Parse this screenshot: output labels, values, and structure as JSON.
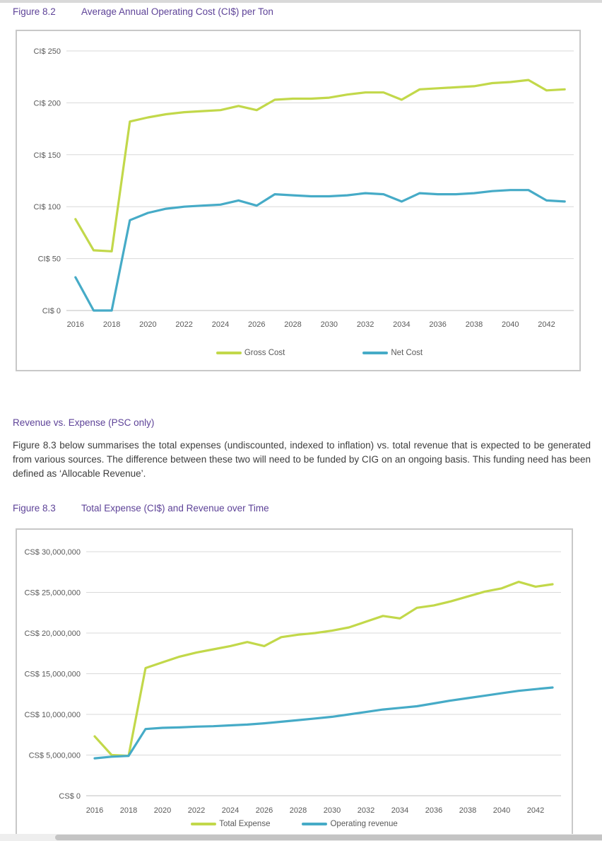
{
  "page": {
    "figure1": {
      "label": "Figure 8.2",
      "title": "Average Annual Operating Cost (CI$) per Ton"
    },
    "section": {
      "heading": "Revenue vs. Expense (PSC only)",
      "paragraph": "Figure 8.3 below summarises the total expenses (undiscounted, indexed to inflation) vs. total revenue that is expected to be generated from various sources. The difference between these two will need to be funded by CIG on an ongoing basis. This funding need has been defined as ‘Allocable Revenue’."
    },
    "figure2": {
      "label": "Figure 8.3",
      "title": "Total Expense (CI$) and Revenue over Time"
    }
  },
  "colors": {
    "heading_purple": "#5e4398",
    "body_text": "#3d3d3d",
    "axis_text": "#595959",
    "gridline": "#d9d9d9",
    "axis_line": "#bfbfbf",
    "chart_border": "#c8c8c8",
    "gross_green": "#c2d84a",
    "net_blue": "#46abc7",
    "scrollbar_thumb": "#c4c4c4",
    "scrollbar_track": "#eeeeee"
  },
  "chart_data": [
    {
      "type": "line",
      "title": "Average Annual Operating Cost (CI$) per Ton",
      "xlabel": "",
      "ylabel": "",
      "x": [
        2016,
        2017,
        2018,
        2019,
        2020,
        2021,
        2022,
        2023,
        2024,
        2025,
        2026,
        2027,
        2028,
        2029,
        2030,
        2031,
        2032,
        2033,
        2034,
        2035,
        2036,
        2037,
        2038,
        2039,
        2040,
        2041,
        2042,
        2043
      ],
      "series": [
        {
          "name": "Gross Cost",
          "color": "#c2d84a",
          "values": [
            88,
            58,
            57,
            182,
            186,
            189,
            191,
            192,
            193,
            197,
            193,
            203,
            204,
            204,
            205,
            208,
            210,
            210,
            203,
            213,
            214,
            215,
            216,
            219,
            220,
            222,
            212,
            213
          ]
        },
        {
          "name": "Net Cost",
          "color": "#46abc7",
          "values": [
            32,
            0,
            0,
            87,
            94,
            98,
            100,
            101,
            102,
            106,
            101,
            112,
            111,
            110,
            110,
            111,
            113,
            112,
            105,
            113,
            112,
            112,
            113,
            115,
            116,
            116,
            106,
            105
          ]
        }
      ],
      "ylim": [
        0,
        250
      ],
      "ytick_step": 50,
      "yticklabels": [
        "CI$ 0",
        "CI$ 50",
        "CI$ 100",
        "CI$ 150",
        "CI$ 200",
        "CI$ 250"
      ],
      "xticklabels": [
        "2016",
        "2018",
        "2020",
        "2022",
        "2024",
        "2026",
        "2028",
        "2030",
        "2032",
        "2034",
        "2036",
        "2038",
        "2040",
        "2042"
      ],
      "grid": true,
      "legend_position": "bottom"
    },
    {
      "type": "line",
      "title": "Total Expense (CI$) and Revenue over Time",
      "xlabel": "",
      "ylabel": "",
      "x": [
        2016,
        2017,
        2018,
        2019,
        2020,
        2021,
        2022,
        2023,
        2024,
        2025,
        2026,
        2027,
        2028,
        2029,
        2030,
        2031,
        2032,
        2033,
        2034,
        2035,
        2036,
        2037,
        2038,
        2039,
        2040,
        2041,
        2042,
        2043
      ],
      "series": [
        {
          "name": "Total Expense",
          "color": "#c2d84a",
          "values": [
            7300000,
            5000000,
            4900000,
            15700000,
            16400000,
            17100000,
            17600000,
            18000000,
            18400000,
            18900000,
            18400000,
            19500000,
            19800000,
            20000000,
            20300000,
            20700000,
            21400000,
            22100000,
            21800000,
            23100000,
            23400000,
            23900000,
            24500000,
            25100000,
            25500000,
            26300000,
            25700000,
            26000000
          ]
        },
        {
          "name": "Operating revenue",
          "color": "#46abc7",
          "values": [
            4600000,
            4800000,
            4900000,
            8200000,
            8350000,
            8400000,
            8500000,
            8550000,
            8650000,
            8750000,
            8900000,
            9100000,
            9300000,
            9500000,
            9700000,
            10000000,
            10300000,
            10600000,
            10800000,
            11000000,
            11350000,
            11700000,
            12000000,
            12300000,
            12600000,
            12900000,
            13100000,
            13300000
          ]
        }
      ],
      "ylim": [
        0,
        30000000
      ],
      "ytick_step": 5000000,
      "yticklabels": [
        "CS$ 0",
        "CS$  5,000,000",
        "CS$ 10,000,000",
        "CS$ 15,000,000",
        "CS$ 20,000,000",
        "CS$ 25,000,000",
        "CS$ 30,000,000"
      ],
      "xticklabels": [
        "2016",
        "2018",
        "2020",
        "2022",
        "2024",
        "2026",
        "2028",
        "2030",
        "2032",
        "2034",
        "2036",
        "2038",
        "2040",
        "2042"
      ],
      "grid": true,
      "legend_position": "bottom"
    }
  ]
}
